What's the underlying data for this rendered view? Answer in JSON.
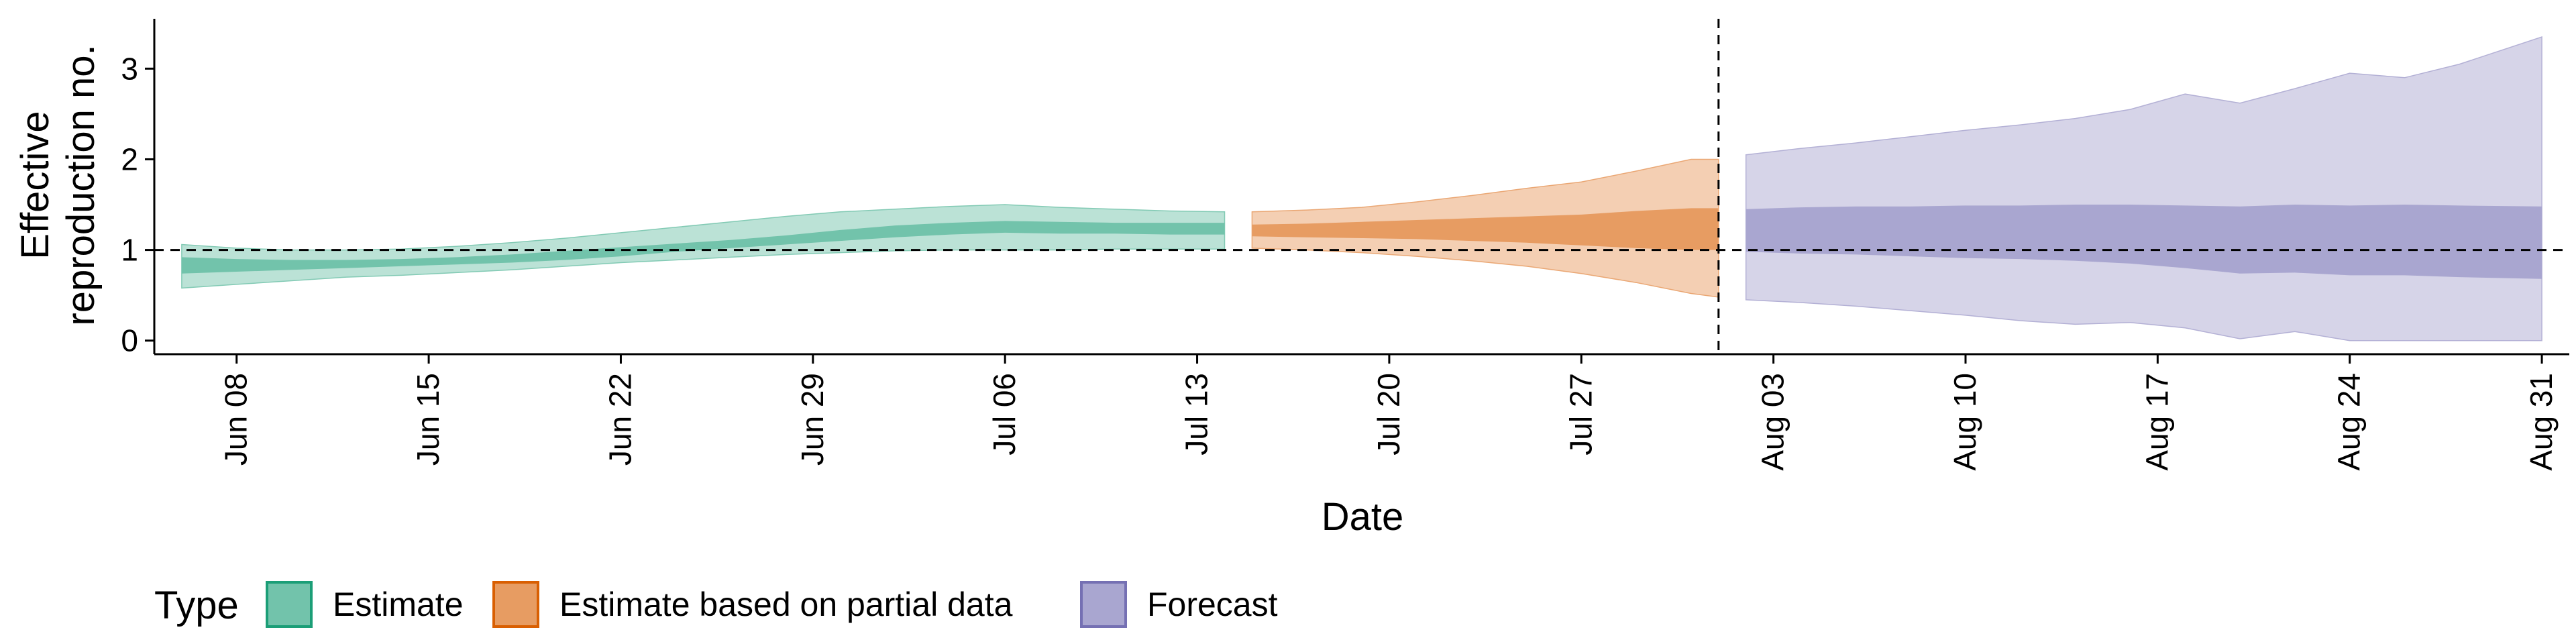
{
  "chart_data": {
    "type": "area",
    "title": "",
    "xlabel": "Date",
    "ylabel_lines": [
      "Effective",
      "reproduction no."
    ],
    "ylim": [
      -0.15,
      3.55
    ],
    "yticks": [
      0,
      1,
      2,
      3
    ],
    "x_start": "2020-06-05",
    "x_end": "2020-09-01",
    "xticks": [
      {
        "date": "2020-06-08",
        "label": "Jun 08"
      },
      {
        "date": "2020-06-15",
        "label": "Jun 15"
      },
      {
        "date": "2020-06-22",
        "label": "Jun 22"
      },
      {
        "date": "2020-06-29",
        "label": "Jun 29"
      },
      {
        "date": "2020-07-06",
        "label": "Jul 06"
      },
      {
        "date": "2020-07-13",
        "label": "Jul 13"
      },
      {
        "date": "2020-07-20",
        "label": "Jul 20"
      },
      {
        "date": "2020-07-27",
        "label": "Jul 27"
      },
      {
        "date": "2020-08-03",
        "label": "Aug 03"
      },
      {
        "date": "2020-08-10",
        "label": "Aug 10"
      },
      {
        "date": "2020-08-17",
        "label": "Aug 17"
      },
      {
        "date": "2020-08-24",
        "label": "Aug 24"
      },
      {
        "date": "2020-08-31",
        "label": "Aug 31"
      }
    ],
    "reference_line_y": 1,
    "vertical_line_date": "2020-08-01",
    "legend": {
      "title": "Type",
      "placement": "bottom-left",
      "entries": [
        {
          "label": "Estimate",
          "color": "#1b9e77"
        },
        {
          "label": "Estimate based on partial data",
          "color": "#d95f02"
        },
        {
          "label": "Forecast",
          "color": "#7570b3"
        }
      ]
    },
    "series": [
      {
        "type_label": "Estimate",
        "color": "#1b9e77",
        "dates": [
          "2020-06-06",
          "2020-06-08",
          "2020-06-10",
          "2020-06-12",
          "2020-06-14",
          "2020-06-16",
          "2020-06-18",
          "2020-06-20",
          "2020-06-22",
          "2020-06-24",
          "2020-06-26",
          "2020-06-28",
          "2020-06-30",
          "2020-07-02",
          "2020-07-04",
          "2020-07-06",
          "2020-07-08",
          "2020-07-10",
          "2020-07-12",
          "2020-07-14"
        ],
        "lower_90": [
          0.58,
          0.62,
          0.66,
          0.7,
          0.72,
          0.75,
          0.78,
          0.82,
          0.86,
          0.89,
          0.92,
          0.95,
          0.97,
          0.99,
          1.0,
          1.0,
          1.0,
          1.01,
          1.01,
          1.01
        ],
        "upper_90": [
          1.06,
          1.02,
          1.0,
          1.0,
          1.01,
          1.04,
          1.08,
          1.13,
          1.19,
          1.25,
          1.31,
          1.37,
          1.42,
          1.45,
          1.48,
          1.5,
          1.47,
          1.45,
          1.43,
          1.42
        ],
        "lower_50": [
          0.74,
          0.76,
          0.78,
          0.8,
          0.82,
          0.84,
          0.86,
          0.89,
          0.93,
          0.98,
          1.02,
          1.06,
          1.1,
          1.14,
          1.17,
          1.19,
          1.18,
          1.18,
          1.17,
          1.17
        ],
        "upper_50": [
          0.92,
          0.9,
          0.89,
          0.89,
          0.9,
          0.92,
          0.95,
          0.99,
          1.03,
          1.07,
          1.11,
          1.16,
          1.22,
          1.27,
          1.3,
          1.32,
          1.31,
          1.3,
          1.3,
          1.3
        ]
      },
      {
        "type_label": "Estimate based on partial data",
        "color": "#d95f02",
        "dates": [
          "2020-07-15",
          "2020-07-17",
          "2020-07-19",
          "2020-07-21",
          "2020-07-23",
          "2020-07-25",
          "2020-07-27",
          "2020-07-29",
          "2020-07-31",
          "2020-08-01"
        ],
        "lower_90": [
          1.02,
          1.0,
          0.97,
          0.93,
          0.88,
          0.82,
          0.74,
          0.64,
          0.52,
          0.48
        ],
        "upper_90": [
          1.42,
          1.44,
          1.47,
          1.53,
          1.6,
          1.68,
          1.75,
          1.87,
          2.0,
          2.0
        ],
        "lower_50": [
          1.15,
          1.14,
          1.13,
          1.12,
          1.1,
          1.08,
          1.05,
          1.02,
          1.0,
          1.0
        ],
        "upper_50": [
          1.28,
          1.29,
          1.31,
          1.33,
          1.35,
          1.37,
          1.39,
          1.43,
          1.46,
          1.46
        ]
      },
      {
        "type_label": "Forecast",
        "color": "#7570b3",
        "dates": [
          "2020-08-02",
          "2020-08-04",
          "2020-08-06",
          "2020-08-08",
          "2020-08-10",
          "2020-08-12",
          "2020-08-14",
          "2020-08-16",
          "2020-08-18",
          "2020-08-20",
          "2020-08-22",
          "2020-08-24",
          "2020-08-26",
          "2020-08-28",
          "2020-08-31"
        ],
        "lower_90": [
          0.45,
          0.42,
          0.38,
          0.33,
          0.28,
          0.22,
          0.18,
          0.2,
          0.14,
          0.02,
          0.1,
          0.0,
          0.0,
          0.0,
          0.0
        ],
        "upper_90": [
          2.05,
          2.12,
          2.18,
          2.25,
          2.32,
          2.38,
          2.45,
          2.55,
          2.72,
          2.62,
          2.78,
          2.95,
          2.9,
          3.05,
          3.35
        ],
        "lower_50": [
          0.98,
          0.96,
          0.95,
          0.93,
          0.91,
          0.9,
          0.88,
          0.85,
          0.8,
          0.74,
          0.75,
          0.72,
          0.72,
          0.7,
          0.68
        ],
        "upper_50": [
          1.45,
          1.47,
          1.48,
          1.48,
          1.49,
          1.49,
          1.5,
          1.5,
          1.49,
          1.48,
          1.5,
          1.49,
          1.5,
          1.49,
          1.48
        ]
      }
    ]
  }
}
